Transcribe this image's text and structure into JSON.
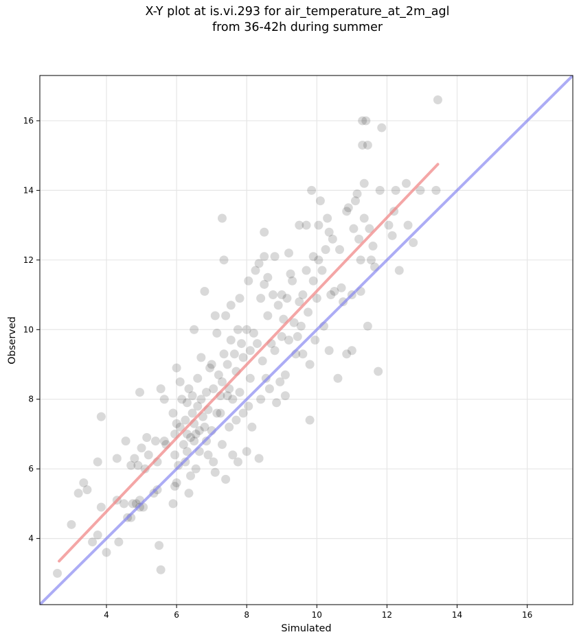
{
  "chart_data": {
    "type": "scatter",
    "title_line1": "X-Y plot at is.vi.293 for air_temperature_at_2m_agl",
    "title_line2": "from 36-42h during summer",
    "xlabel": "Simulated",
    "ylabel": "Observed",
    "xlim": [
      2.1,
      17.3
    ],
    "ylim": [
      2.1,
      17.3
    ],
    "xticks": [
      4,
      6,
      8,
      10,
      12,
      14,
      16
    ],
    "yticks": [
      4,
      6,
      8,
      10,
      12,
      14,
      16
    ],
    "grid": true,
    "colors": {
      "points": "#000000",
      "regression": "#f08080",
      "identity": "#8080f0"
    },
    "regression_line": {
      "x": [
        2.65,
        13.45
      ],
      "y": [
        3.35,
        14.75
      ]
    },
    "identity_line": {
      "x": [
        2.1,
        17.3
      ],
      "y": [
        2.1,
        17.3
      ]
    },
    "points": [
      [
        2.6,
        3.0
      ],
      [
        3.0,
        4.4
      ],
      [
        3.2,
        5.3
      ],
      [
        3.35,
        5.6
      ],
      [
        3.45,
        5.4
      ],
      [
        3.6,
        3.9
      ],
      [
        3.75,
        4.1
      ],
      [
        3.75,
        6.2
      ],
      [
        3.85,
        7.5
      ],
      [
        3.85,
        4.9
      ],
      [
        4.0,
        3.6
      ],
      [
        4.3,
        6.3
      ],
      [
        4.3,
        5.1
      ],
      [
        4.35,
        3.9
      ],
      [
        4.5,
        5.0
      ],
      [
        4.55,
        6.8
      ],
      [
        4.6,
        4.6
      ],
      [
        4.7,
        4.6
      ],
      [
        4.7,
        6.1
      ],
      [
        4.75,
        5.0
      ],
      [
        4.8,
        6.3
      ],
      [
        4.85,
        5.0
      ],
      [
        4.9,
        6.1
      ],
      [
        4.95,
        4.9
      ],
      [
        4.95,
        5.1
      ],
      [
        4.95,
        8.2
      ],
      [
        5.0,
        6.6
      ],
      [
        5.05,
        4.9
      ],
      [
        5.1,
        6.0
      ],
      [
        5.15,
        6.9
      ],
      [
        5.2,
        6.4
      ],
      [
        5.35,
        5.3
      ],
      [
        5.4,
        6.8
      ],
      [
        5.45,
        5.4
      ],
      [
        5.45,
        6.2
      ],
      [
        5.5,
        3.8
      ],
      [
        5.55,
        3.1
      ],
      [
        5.55,
        8.3
      ],
      [
        5.65,
        8.0
      ],
      [
        5.65,
        6.8
      ],
      [
        5.7,
        6.7
      ],
      [
        5.9,
        5.0
      ],
      [
        5.9,
        7.6
      ],
      [
        5.95,
        5.5
      ],
      [
        5.95,
        6.4
      ],
      [
        5.95,
        7.0
      ],
      [
        6.0,
        8.9
      ],
      [
        6.0,
        7.3
      ],
      [
        6.0,
        5.6
      ],
      [
        6.05,
        6.1
      ],
      [
        6.1,
        7.2
      ],
      [
        6.1,
        8.5
      ],
      [
        6.15,
        8.0
      ],
      [
        6.2,
        6.7
      ],
      [
        6.25,
        7.4
      ],
      [
        6.25,
        6.2
      ],
      [
        6.3,
        7.0
      ],
      [
        6.3,
        6.5
      ],
      [
        6.3,
        7.9
      ],
      [
        6.35,
        5.3
      ],
      [
        6.35,
        8.3
      ],
      [
        6.4,
        5.8
      ],
      [
        6.4,
        6.9
      ],
      [
        6.45,
        7.6
      ],
      [
        6.45,
        8.1
      ],
      [
        6.5,
        7.3
      ],
      [
        6.5,
        6.8
      ],
      [
        6.5,
        10.0
      ],
      [
        6.55,
        6.0
      ],
      [
        6.55,
        7.0
      ],
      [
        6.6,
        7.8
      ],
      [
        6.6,
        8.6
      ],
      [
        6.65,
        7.1
      ],
      [
        6.65,
        6.5
      ],
      [
        6.7,
        9.2
      ],
      [
        6.7,
        8.0
      ],
      [
        6.75,
        7.5
      ],
      [
        6.8,
        11.1
      ],
      [
        6.8,
        7.2
      ],
      [
        6.85,
        6.8
      ],
      [
        6.85,
        8.2
      ],
      [
        6.9,
        6.4
      ],
      [
        6.9,
        7.7
      ],
      [
        6.95,
        8.9
      ],
      [
        7.0,
        7.1
      ],
      [
        7.0,
        9.0
      ],
      [
        7.05,
        6.2
      ],
      [
        7.05,
        8.3
      ],
      [
        7.1,
        10.4
      ],
      [
        7.1,
        5.9
      ],
      [
        7.15,
        7.6
      ],
      [
        7.15,
        9.9
      ],
      [
        7.2,
        8.7
      ],
      [
        7.25,
        7.6
      ],
      [
        7.25,
        8.1
      ],
      [
        7.3,
        13.2
      ],
      [
        7.3,
        8.5
      ],
      [
        7.3,
        6.7
      ],
      [
        7.35,
        12.0
      ],
      [
        7.35,
        9.3
      ],
      [
        7.4,
        5.7
      ],
      [
        7.4,
        10.4
      ],
      [
        7.45,
        8.1
      ],
      [
        7.45,
        9.0
      ],
      [
        7.5,
        8.3
      ],
      [
        7.5,
        7.2
      ],
      [
        7.55,
        9.7
      ],
      [
        7.55,
        10.7
      ],
      [
        7.6,
        8.0
      ],
      [
        7.6,
        6.4
      ],
      [
        7.65,
        9.3
      ],
      [
        7.7,
        7.4
      ],
      [
        7.7,
        8.8
      ],
      [
        7.75,
        10.0
      ],
      [
        7.75,
        6.2
      ],
      [
        7.8,
        10.9
      ],
      [
        7.8,
        8.2
      ],
      [
        7.85,
        9.6
      ],
      [
        7.9,
        7.6
      ],
      [
        7.9,
        9.2
      ],
      [
        8.0,
        6.5
      ],
      [
        8.0,
        10.0
      ],
      [
        8.05,
        11.4
      ],
      [
        8.05,
        7.8
      ],
      [
        8.1,
        9.4
      ],
      [
        8.1,
        8.6
      ],
      [
        8.15,
        7.2
      ],
      [
        8.2,
        9.9
      ],
      [
        8.25,
        11.7
      ],
      [
        8.3,
        9.6
      ],
      [
        8.35,
        6.3
      ],
      [
        8.35,
        11.9
      ],
      [
        8.4,
        10.9
      ],
      [
        8.4,
        8.0
      ],
      [
        8.45,
        9.1
      ],
      [
        8.5,
        11.3
      ],
      [
        8.5,
        12.1
      ],
      [
        8.5,
        12.8
      ],
      [
        8.55,
        8.6
      ],
      [
        8.6,
        11.5
      ],
      [
        8.6,
        10.4
      ],
      [
        8.65,
        8.3
      ],
      [
        8.7,
        9.6
      ],
      [
        8.75,
        11.0
      ],
      [
        8.8,
        12.1
      ],
      [
        8.8,
        9.4
      ],
      [
        8.85,
        7.9
      ],
      [
        8.9,
        10.7
      ],
      [
        8.95,
        8.5
      ],
      [
        9.0,
        11.0
      ],
      [
        9.0,
        9.8
      ],
      [
        9.05,
        10.3
      ],
      [
        9.1,
        8.1
      ],
      [
        9.1,
        8.7
      ],
      [
        9.15,
        10.9
      ],
      [
        9.2,
        12.2
      ],
      [
        9.2,
        9.7
      ],
      [
        9.25,
        11.6
      ],
      [
        9.3,
        11.4
      ],
      [
        9.35,
        10.2
      ],
      [
        9.4,
        9.3
      ],
      [
        9.45,
        9.8
      ],
      [
        9.5,
        13.0
      ],
      [
        9.5,
        10.8
      ],
      [
        9.55,
        10.1
      ],
      [
        9.6,
        9.3
      ],
      [
        9.6,
        11.0
      ],
      [
        9.7,
        13.0
      ],
      [
        9.7,
        11.7
      ],
      [
        9.75,
        10.5
      ],
      [
        9.8,
        9.0
      ],
      [
        9.8,
        7.4
      ],
      [
        9.85,
        14.0
      ],
      [
        9.9,
        12.1
      ],
      [
        9.9,
        11.4
      ],
      [
        9.95,
        9.7
      ],
      [
        10.0,
        10.9
      ],
      [
        10.05,
        12.0
      ],
      [
        10.05,
        13.0
      ],
      [
        10.1,
        13.7
      ],
      [
        10.15,
        11.7
      ],
      [
        10.2,
        10.1
      ],
      [
        10.25,
        12.3
      ],
      [
        10.3,
        13.2
      ],
      [
        10.35,
        12.8
      ],
      [
        10.35,
        9.4
      ],
      [
        10.4,
        11.0
      ],
      [
        10.45,
        12.6
      ],
      [
        10.5,
        11.1
      ],
      [
        10.6,
        8.6
      ],
      [
        10.65,
        12.3
      ],
      [
        10.7,
        11.2
      ],
      [
        10.75,
        10.8
      ],
      [
        10.85,
        13.4
      ],
      [
        10.85,
        9.3
      ],
      [
        10.9,
        13.5
      ],
      [
        11.0,
        11.0
      ],
      [
        11.0,
        9.4
      ],
      [
        11.05,
        12.9
      ],
      [
        11.1,
        13.7
      ],
      [
        11.15,
        13.9
      ],
      [
        11.2,
        12.6
      ],
      [
        11.25,
        12.0
      ],
      [
        11.25,
        11.1
      ],
      [
        11.3,
        15.3
      ],
      [
        11.3,
        16.0
      ],
      [
        11.35,
        13.2
      ],
      [
        11.35,
        14.2
      ],
      [
        11.4,
        16.0
      ],
      [
        11.45,
        10.1
      ],
      [
        11.45,
        15.3
      ],
      [
        11.5,
        12.9
      ],
      [
        11.55,
        12.0
      ],
      [
        11.6,
        12.4
      ],
      [
        11.65,
        11.8
      ],
      [
        11.75,
        8.8
      ],
      [
        11.8,
        14.0
      ],
      [
        11.85,
        15.8
      ],
      [
        12.05,
        13.0
      ],
      [
        12.15,
        12.7
      ],
      [
        12.2,
        13.4
      ],
      [
        12.25,
        14.0
      ],
      [
        12.35,
        11.7
      ],
      [
        12.55,
        14.2
      ],
      [
        12.6,
        13.0
      ],
      [
        12.75,
        12.5
      ],
      [
        12.95,
        14.0
      ],
      [
        13.4,
        14.0
      ],
      [
        13.45,
        16.6
      ]
    ]
  }
}
